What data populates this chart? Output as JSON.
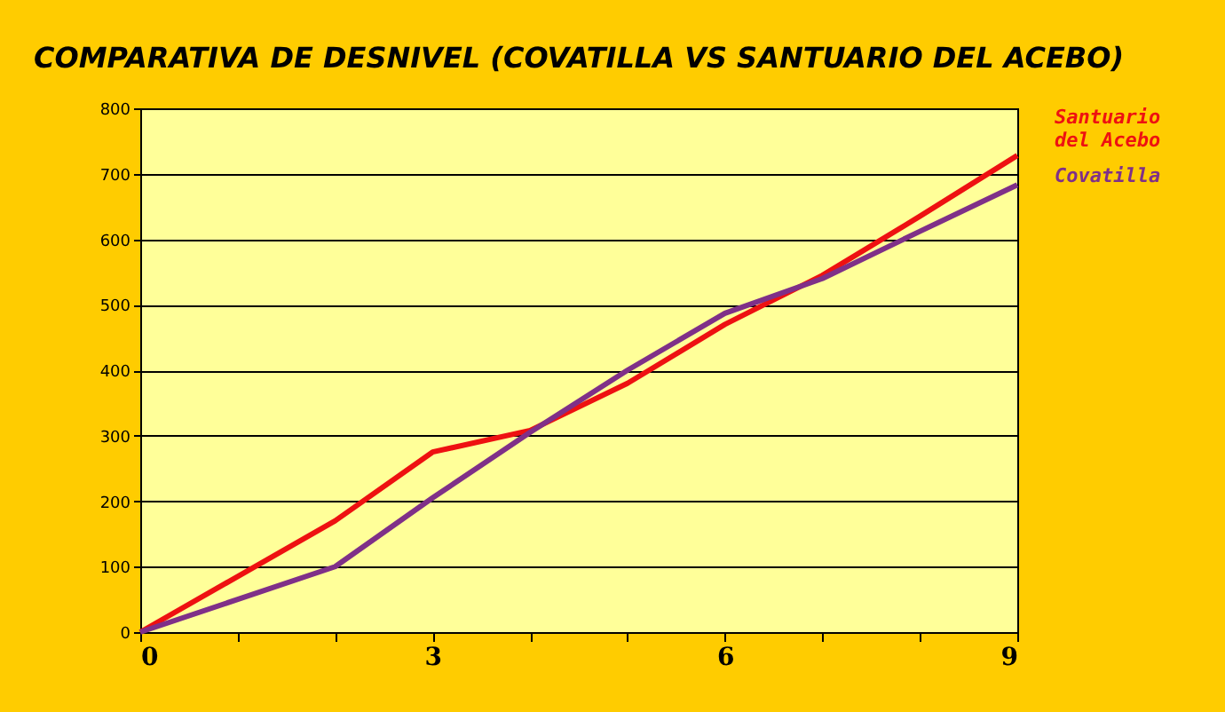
{
  "chart_data": {
    "type": "line",
    "title": "COMPARATIVA DE DESNIVEL (COVATILLA VS SANTUARIO DEL ACEBO)",
    "x": [
      0,
      1,
      2,
      3,
      4,
      5,
      6,
      7,
      8,
      9
    ],
    "series": [
      {
        "name": "Santuario del Acebo",
        "color": "#ee1111",
        "values": [
          0,
          85,
          170,
          275,
          308,
          380,
          470,
          545,
          635,
          728
        ]
      },
      {
        "name": "Covatilla",
        "color": "#7f3088",
        "values": [
          0,
          50,
          100,
          205,
          305,
          400,
          487,
          540,
          612,
          683
        ]
      }
    ],
    "xlim": [
      0,
      9
    ],
    "xticks": [
      0,
      {
        "value": 1,
        "label": null
      },
      {
        "value": 2,
        "label": null
      },
      3,
      {
        "value": 4,
        "label": null
      },
      {
        "value": 5,
        "label": null
      },
      6,
      {
        "value": 7,
        "label": null
      },
      {
        "value": 8,
        "label": null
      },
      9
    ],
    "ylim": [
      0,
      800
    ],
    "yticks": [
      0,
      100,
      200,
      300,
      400,
      500,
      600,
      700,
      800
    ],
    "grid": "y",
    "legend": "top right",
    "marker": "none",
    "line_style": "solid"
  }
}
